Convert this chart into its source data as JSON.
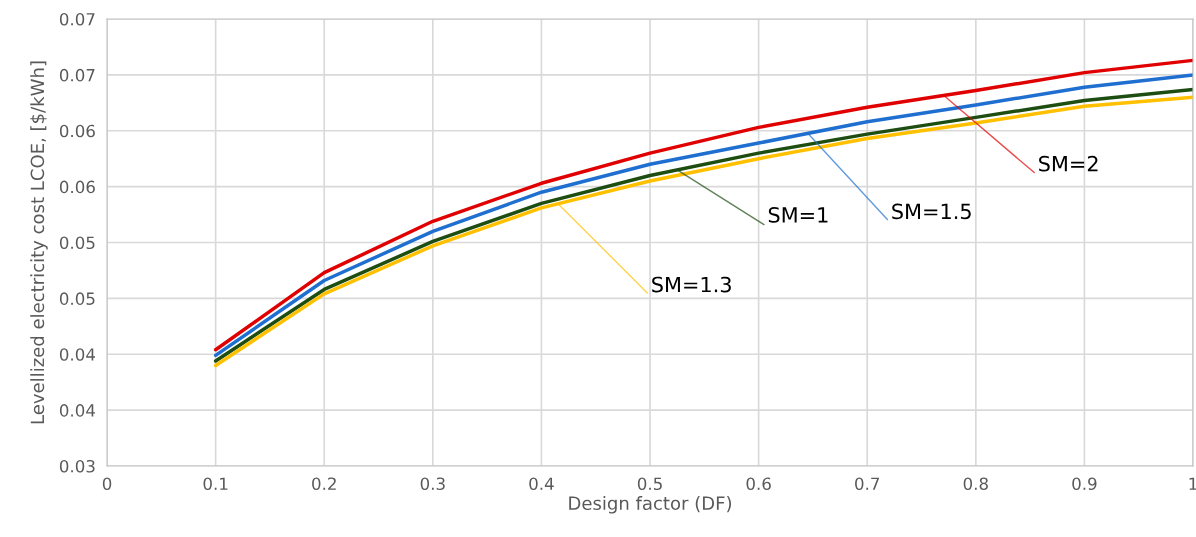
{
  "chart_data": {
    "type": "line",
    "xlabel": "Design factor (DF)",
    "ylabel": "Levellized electricity cost LCOE, [$/kWh]",
    "x": [
      0.1,
      0.2,
      0.3,
      0.4,
      0.5,
      0.6,
      0.7,
      0.8,
      0.9,
      1.0
    ],
    "series": [
      {
        "color": "#e00000",
        "values": [
          0.0404,
          0.0473,
          0.0519,
          0.0553,
          0.058,
          0.0603,
          0.0621,
          0.0636,
          0.0652,
          0.0663
        ]
      },
      {
        "color": "#1f6fd0",
        "values": [
          0.0399,
          0.0466,
          0.051,
          0.0545,
          0.057,
          0.0589,
          0.0608,
          0.0623,
          0.0639,
          0.065
        ]
      },
      {
        "color": "#1e4d12",
        "values": [
          0.0394,
          0.0458,
          0.0501,
          0.0535,
          0.056,
          0.058,
          0.0597,
          0.0612,
          0.0627,
          0.0637
        ]
      },
      {
        "color": "#ffc000",
        "values": [
          0.039,
          0.0454,
          0.0497,
          0.0531,
          0.0555,
          0.0575,
          0.0593,
          0.0607,
          0.0622,
          0.063
        ]
      }
    ],
    "annotations": [
      {
        "text": "SM=2",
        "x": 0.77,
        "y": 0.0632
      },
      {
        "text": "SM=1.5",
        "x": 0.645,
        "y": 0.0598
      },
      {
        "text": "SM=1",
        "x": 0.525,
        "y": 0.0565
      },
      {
        "text": "SM=1.3",
        "x": 0.415,
        "y": 0.0535
      }
    ],
    "xlim": [
      0,
      1
    ],
    "ylim": [
      0.03,
      0.07
    ],
    "xticks": [
      0,
      0.1,
      0.2,
      0.3,
      0.4,
      0.5,
      0.6,
      0.7,
      0.8,
      0.9,
      1
    ],
    "yticks": [
      0.03,
      {
        "value": 0.035,
        "label": "0.04"
      },
      0.04,
      {
        "value": 0.045,
        "label": "0.05"
      },
      0.05,
      {
        "value": 0.055,
        "label": "0.06"
      },
      0.06,
      {
        "value": 0.065,
        "label": "0.07"
      },
      0.07
    ],
    "grid": true,
    "legend": false,
    "marker": "none",
    "line_style": "solid"
  }
}
